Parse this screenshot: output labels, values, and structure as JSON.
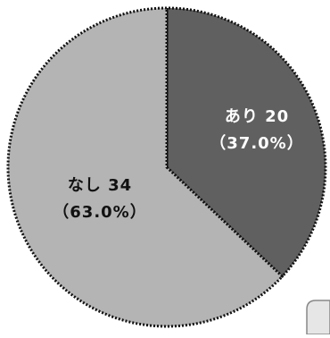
{
  "chart_data": {
    "type": "pie",
    "title": "",
    "slices": [
      {
        "label": "あり",
        "value": 20,
        "percent_label": "（37.0%）",
        "color": "#606060",
        "text_color": "#ffffff"
      },
      {
        "label": "なし",
        "value": 34,
        "percent_label": "（63.0%）",
        "color": "#b4b4b4",
        "text_color": "#111111"
      }
    ],
    "start_angle": "12 o'clock",
    "direction": "clockwise",
    "border_style": "dotted",
    "border_color": "#111111",
    "legend": "none"
  }
}
